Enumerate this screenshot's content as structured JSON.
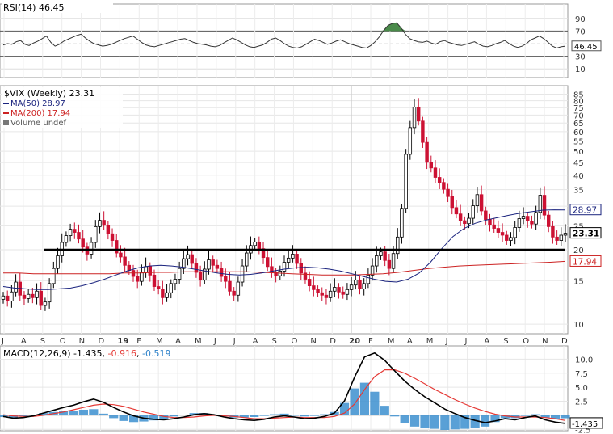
{
  "chart_data": [
    {
      "type": "line",
      "panel": "rsi",
      "label": "RSI(14)",
      "value_label": "46.45",
      "ylim": [
        0,
        100
      ],
      "ticks": [
        "90",
        "70",
        "50",
        "30",
        "10"
      ],
      "reference_lines": [
        70,
        30
      ],
      "current_value_tag": "46.45",
      "grid": true,
      "series": [
        {
          "values": [
            48,
            50,
            49,
            53,
            55,
            49,
            47,
            51,
            54,
            58,
            62,
            52,
            46,
            49,
            54,
            57,
            60,
            63,
            65,
            59,
            54,
            50,
            48,
            46,
            47,
            49,
            52,
            55,
            58,
            60,
            62,
            57,
            52,
            48,
            46,
            45,
            47,
            49,
            51,
            53,
            55,
            57,
            58,
            55,
            52,
            50,
            49,
            48,
            46,
            45,
            47,
            51,
            55,
            59,
            56,
            52,
            48,
            45,
            44,
            46,
            48,
            52,
            57,
            59,
            55,
            50,
            46,
            44,
            43,
            45,
            49,
            53,
            57,
            55,
            52,
            49,
            51,
            54,
            56,
            53,
            50,
            48,
            46,
            44,
            43,
            47,
            53,
            61,
            71,
            79,
            82,
            83,
            75,
            65,
            58,
            55,
            53,
            52,
            54,
            51,
            49,
            53,
            55,
            52,
            50,
            48,
            47,
            49,
            51,
            53,
            49,
            46,
            45,
            47,
            50,
            52,
            55,
            50,
            46,
            44,
            46,
            50,
            56,
            59,
            62,
            58,
            52,
            46,
            43,
            45,
            46
          ]
        }
      ]
    },
    {
      "type": "candlestick",
      "panel": "price",
      "title": "$VIX (Weekly) 23.31",
      "legend": [
        {
          "label": "MA(50) 28.97",
          "color": "#1a237e"
        },
        {
          "label": "MA(200) 17.94",
          "color": "#cc2222"
        },
        {
          "label": "Volume undef",
          "color": "#555555"
        }
      ],
      "y_scale": "log",
      "ylim": [
        9.5,
        86
      ],
      "ticks": [
        "85",
        "80",
        "75",
        "70",
        "65",
        "60",
        "55",
        "50",
        "45",
        "40",
        "35",
        "30",
        "25",
        "20",
        "15",
        "10"
      ],
      "x_labels": [
        "J",
        "A",
        "S",
        "O",
        "N",
        "D",
        "19",
        "F",
        "M",
        "A",
        "M",
        "J",
        "J",
        "A",
        "S",
        "O",
        "N",
        "D",
        "20",
        "F",
        "M",
        "A",
        "M",
        "J",
        "J",
        "A",
        "S",
        "O",
        "N",
        "D"
      ],
      "tags": {
        "ma50": "28.97",
        "close": "23.31",
        "ma200": "17.94"
      },
      "horizontal_line": 20,
      "up_color": "#ffffff",
      "down_color": "#cc1133",
      "grid": true,
      "series": [
        {
          "name": "VIX (close, weekly)",
          "values": [
            13,
            12.4,
            13.5,
            14.8,
            13.1,
            12.7,
            13.2,
            12.8,
            13.6,
            11.9,
            12.3,
            14.6,
            16.8,
            18.9,
            21.4,
            22.8,
            24.2,
            23.5,
            22.1,
            20.5,
            19.2,
            21.4,
            24.8,
            26.3,
            25.1,
            23.2,
            21.8,
            19.4,
            18.7,
            17.3,
            16.5,
            15.6,
            14.9,
            16.2,
            17.1,
            15.8,
            14.2,
            13.9,
            12.8,
            13.4,
            14.6,
            15.2,
            16.8,
            18.4,
            19.1,
            17.6,
            16.2,
            15.1,
            16.7,
            18.2,
            17.3,
            16.8,
            15.6,
            14.9,
            13.6,
            13.1,
            14.8,
            17.2,
            19.4,
            20.8,
            21.5,
            20.2,
            18.6,
            17.1,
            16.2,
            15.7,
            16.4,
            17.8,
            18.5,
            19.2,
            17.6,
            16.1,
            15.2,
            14.3,
            13.8,
            13.4,
            13.1,
            12.8,
            13.6,
            14.1,
            13.5,
            13.2,
            13.8,
            14.4,
            15.1,
            13.9,
            14.6,
            15.8,
            17.2,
            18.9,
            19.6,
            18.1,
            16.8,
            19.3,
            22.5,
            29.4,
            48.6,
            62.3,
            75.4,
            66.2,
            54.3,
            45.1,
            42.8,
            39.2,
            37.4,
            35.1,
            32.8,
            29.6,
            27.9,
            26.2,
            25.5,
            26.8,
            30.1,
            33.4,
            28.7,
            26.5,
            25.2,
            24.4,
            23.5,
            22.9,
            21.8,
            22.4,
            24.6,
            26.7,
            27.3,
            26.1,
            25.4,
            28.3,
            33.2,
            27.6,
            24.8,
            22.5,
            21.8,
            22.9,
            23.31
          ]
        },
        {
          "name": "MA(50)",
          "values": [
            14.2,
            14.0,
            13.9,
            13.8,
            13.8,
            13.9,
            14.0,
            14.3,
            14.7,
            15.2,
            15.8,
            16.4,
            16.9,
            17.2,
            17.3,
            17.2,
            17.0,
            16.7,
            16.4,
            16.1,
            15.9,
            15.8,
            15.9,
            16.1,
            16.4,
            16.7,
            16.9,
            17.0,
            16.9,
            16.7,
            16.4,
            16.0,
            15.6,
            15.2,
            14.9,
            14.8,
            15.2,
            16.1,
            17.8,
            20.2,
            22.6,
            24.4,
            25.6,
            26.4,
            27.0,
            27.6,
            28.1,
            28.5,
            28.9,
            29.0,
            28.97
          ]
        },
        {
          "name": "MA(200)",
          "values": [
            16.1,
            16.1,
            16.0,
            16.0,
            16.0,
            16.0,
            16.0,
            16.0,
            16.1,
            16.1,
            16.2,
            16.2,
            16.3,
            16.3,
            16.3,
            16.3,
            16.3,
            16.2,
            16.1,
            16.0,
            15.9,
            15.8,
            15.8,
            15.8,
            15.9,
            16.0,
            16.2,
            16.5,
            16.8,
            17.0,
            17.2,
            17.3,
            17.4,
            17.5,
            17.6,
            17.7,
            17.8,
            17.94
          ]
        }
      ]
    },
    {
      "type": "line",
      "panel": "macd",
      "label": "MACD(12,26,9)",
      "values_text": [
        "-1.435",
        "-0.916",
        "-0.519"
      ],
      "value_colors": [
        "#000000",
        "#e53935",
        "#2a7fc8"
      ],
      "ylim": [
        -2.6,
        11.5
      ],
      "ticks": [
        "10.0",
        "7.5",
        "5.0",
        "2.5",
        "-2.5"
      ],
      "tags": {
        "macd": "-1.435"
      },
      "grid": true,
      "series": [
        {
          "name": "MACD",
          "values": [
            -0.2,
            -0.5,
            -0.4,
            -0.1,
            0.4,
            0.9,
            1.4,
            1.8,
            2.4,
            2.9,
            2.3,
            1.4,
            0.6,
            -0.1,
            -0.5,
            -0.7,
            -0.8,
            -0.6,
            -0.3,
            0.1,
            0.3,
            0.1,
            -0.3,
            -0.6,
            -0.8,
            -0.9,
            -0.7,
            -0.3,
            -0.1,
            -0.3,
            -0.6,
            -0.5,
            -0.2,
            0.4,
            2.6,
            6.8,
            10.4,
            11.1,
            9.8,
            7.9,
            6.1,
            4.6,
            3.3,
            2.2,
            1.1,
            0.3,
            -0.4,
            -0.9,
            -1.3,
            -1.0,
            -0.6,
            -0.8,
            -0.4,
            -0.1,
            -0.8,
            -1.2,
            -1.435
          ]
        },
        {
          "name": "Signal",
          "values": [
            0.1,
            -0.1,
            -0.2,
            -0.2,
            0.0,
            0.3,
            0.6,
            1.0,
            1.4,
            1.8,
            2.0,
            1.9,
            1.6,
            1.1,
            0.6,
            0.2,
            -0.2,
            -0.4,
            -0.4,
            -0.3,
            -0.1,
            0.0,
            -0.1,
            -0.2,
            -0.4,
            -0.6,
            -0.6,
            -0.5,
            -0.4,
            -0.3,
            -0.4,
            -0.4,
            -0.4,
            -0.2,
            0.4,
            2.0,
            4.6,
            6.9,
            8.1,
            8.1,
            7.5,
            6.6,
            5.6,
            4.6,
            3.7,
            2.8,
            2.0,
            1.3,
            0.7,
            0.2,
            -0.1,
            -0.3,
            -0.3,
            -0.3,
            -0.4,
            -0.6,
            -0.916
          ]
        }
      ]
    }
  ]
}
